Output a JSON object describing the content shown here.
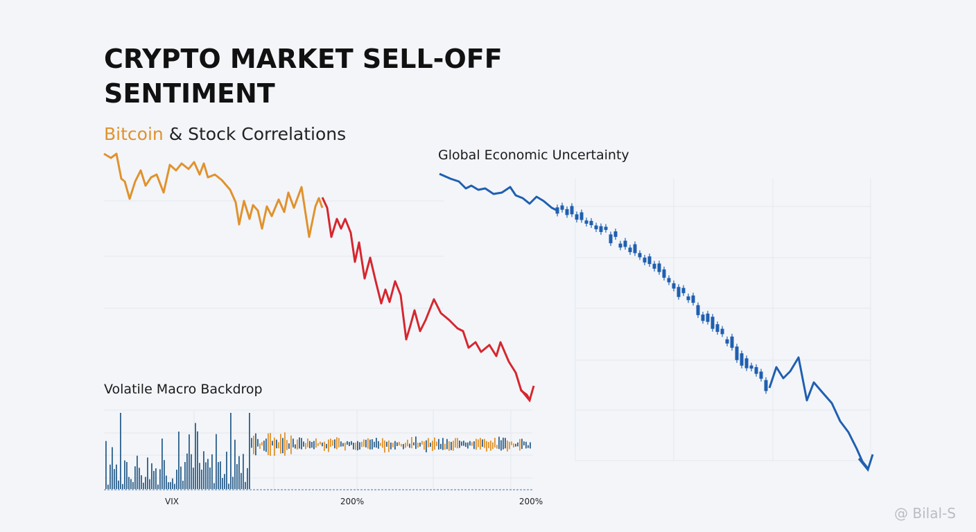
{
  "header": {
    "title_lines": [
      "CRYPTO MARKET SELL-OFF",
      "SENTIMENT"
    ],
    "subtitle": {
      "highlight": "Bitcoin",
      "rest": "& Stock Correlations"
    }
  },
  "panels": {
    "right_title": "Global Economic Uncertainty",
    "bottom_title": "Volatile Macro Backdrop",
    "bottom_labels": [
      "VIX",
      "200%",
      "200%"
    ]
  },
  "watermark": "@ Bilal-S"
}
